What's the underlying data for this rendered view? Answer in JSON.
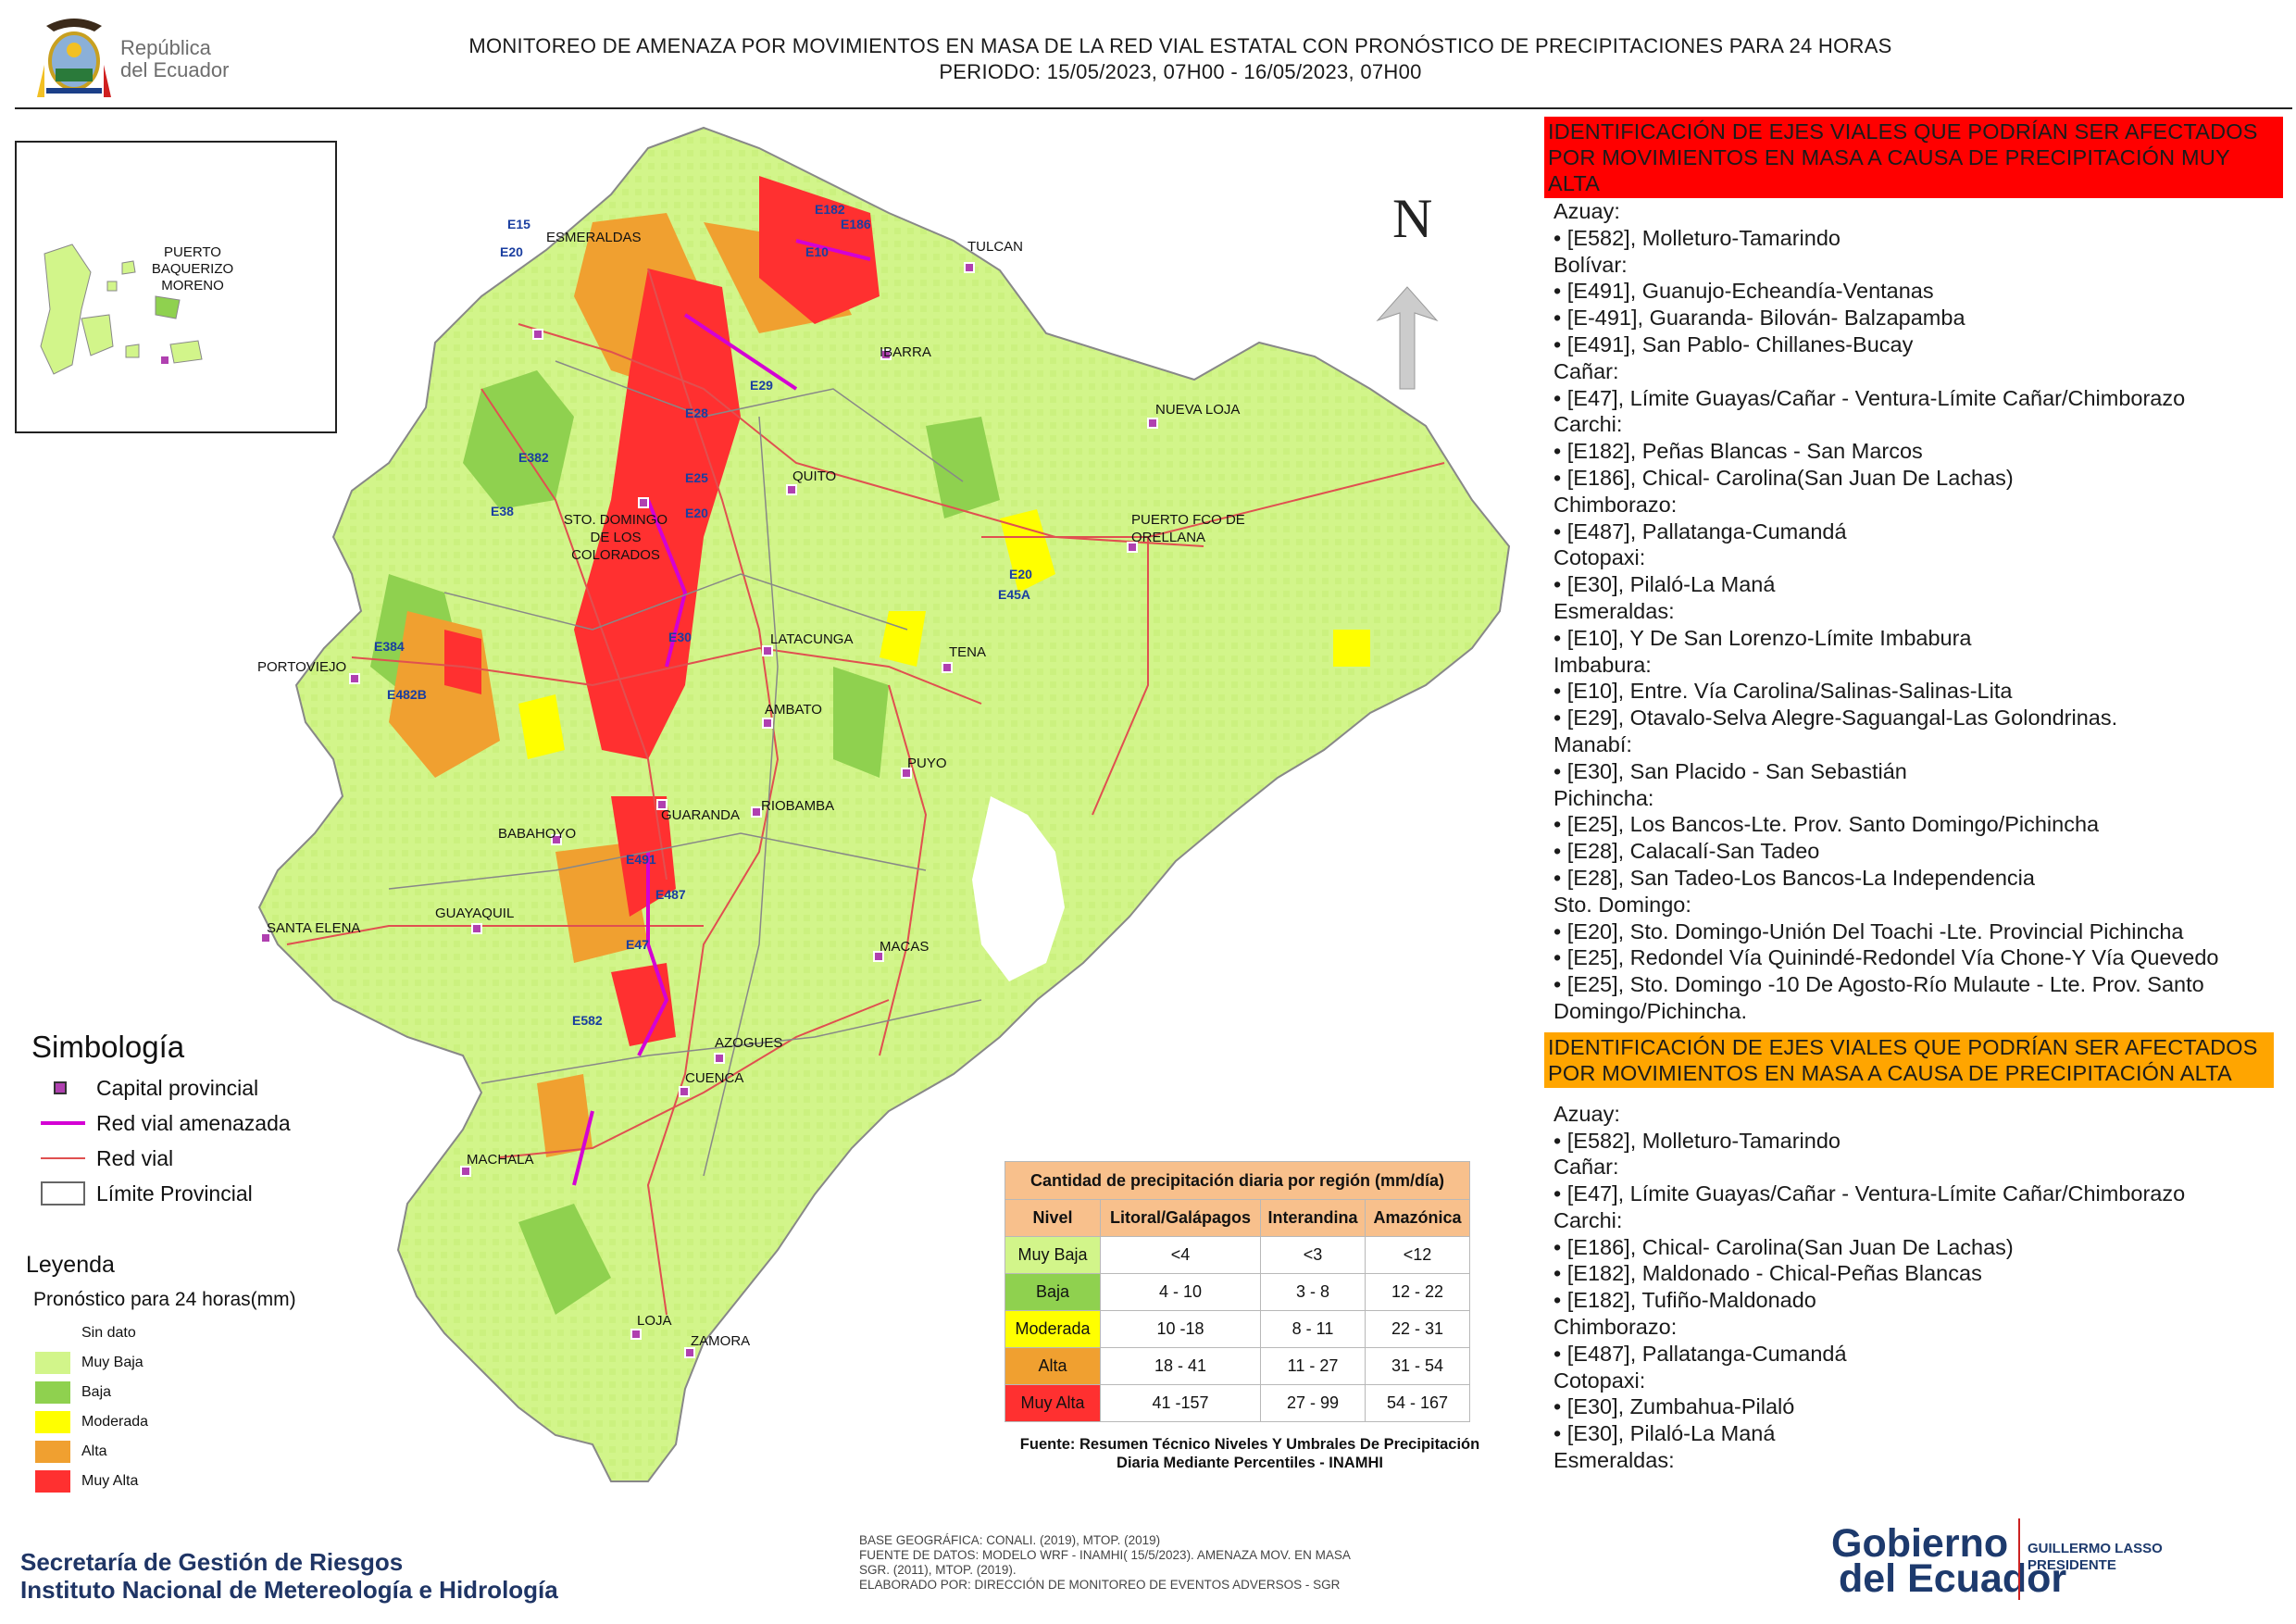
{
  "header": {
    "country_line1": "República",
    "country_line2": "del Ecuador",
    "title_line1": "MONITOREO DE AMENAZA POR MOVIMIENTOS EN MASA DE LA RED VIAL  ESTATAL  CON PRONÓSTICO  DE  PRECIPITACIONES PARA 24 HORAS",
    "title_line2": "PERIODO: 15/05/2023, 07H00 - 16/05/2023, 07H00"
  },
  "map": {
    "north_label": "N",
    "inset_city": "PUERTO\nBAQUERIZO\nMORENO",
    "cities": [
      {
        "name": "ESMERALDAS"
      },
      {
        "name": "TULCAN"
      },
      {
        "name": "IBARRA"
      },
      {
        "name": "NUEVA LOJA"
      },
      {
        "name": "QUITO"
      },
      {
        "name": "STO. DOMINGO DE LOS COLORADOS"
      },
      {
        "name": "PUERTO FCO DE ORELLANA"
      },
      {
        "name": "PORTOVIEJO"
      },
      {
        "name": "LATACUNGA"
      },
      {
        "name": "TENA"
      },
      {
        "name": "AMBATO"
      },
      {
        "name": "PUYO"
      },
      {
        "name": "GUARANDA"
      },
      {
        "name": "RIOBAMBA"
      },
      {
        "name": "BABAHOYO"
      },
      {
        "name": "SANTA ELENA"
      },
      {
        "name": "GUAYAQUIL"
      },
      {
        "name": "MACAS"
      },
      {
        "name": "AZOGUES"
      },
      {
        "name": "CUENCA"
      },
      {
        "name": "MACHALA"
      },
      {
        "name": "LOJA"
      },
      {
        "name": "ZAMORA"
      }
    ],
    "road_labels": [
      "E15",
      "E20",
      "E182",
      "E186",
      "E10",
      "E29",
      "E28",
      "E382",
      "E25",
      "E20",
      "E38",
      "E20",
      "E45A",
      "E30",
      "E384",
      "E482B",
      "E491",
      "E487",
      "E47",
      "E582"
    ]
  },
  "colors": {
    "sin_dato": "#ffffff",
    "muy_baja": "#d2f58a",
    "baja": "#8fd14f",
    "moderada": "#ffff00",
    "alta": "#f0a030",
    "muy_alta": "#ff3030",
    "red_vial_amenazada": "#d400d4",
    "red_vial": "#e05050",
    "banner_red": "#ff0000",
    "banner_orange": "#ffa500",
    "table_header": "#f8c08c"
  },
  "simbologia": {
    "title": "Simbología",
    "items": [
      {
        "label": "Capital provincial",
        "icon": "capital-marker-icon"
      },
      {
        "label": "Red vial amenazada",
        "icon": "threatened-road-line-icon"
      },
      {
        "label": "Red vial",
        "icon": "road-line-icon"
      },
      {
        "label": "Límite Provincial",
        "icon": "province-boundary-icon"
      }
    ]
  },
  "leyenda": {
    "title": "Leyenda",
    "subtitle": "Pronóstico para 24 horas(mm)",
    "items": [
      {
        "label": "Sin dato"
      },
      {
        "label": "Muy Baja"
      },
      {
        "label": "Baja"
      },
      {
        "label": "Moderada"
      },
      {
        "label": "Alta"
      },
      {
        "label": "Muy Alta"
      }
    ]
  },
  "precip_table": {
    "caption": "Cantidad de precipitación diaria por región (mm/día)",
    "headers": [
      "Nivel",
      "Litoral/Galápagos",
      "Interandina",
      "Amazónica"
    ],
    "rows": [
      [
        "Muy Baja",
        "<4",
        "<3",
        "<12"
      ],
      [
        "Baja",
        "4 - 10",
        "3 - 8",
        "12 - 22"
      ],
      [
        "Moderada",
        "10 -18",
        "8 - 11",
        "22 - 31"
      ],
      [
        "Alta",
        "18 - 41",
        "11 - 27",
        "31 - 54"
      ],
      [
        "Muy Alta",
        "41 -157",
        "27 - 99",
        "54 - 167"
      ]
    ],
    "source": "Fuente: Resumen Técnico Niveles Y Umbrales De Precipitación Diaria Mediante Percentiles - INAMHI"
  },
  "panel": {
    "very_high_banner": "IDENTIFICACIÓN DE EJES VIALES QUE PODRÍAN SER AFECTADOS POR MOVIMIENTOS EN MASA A CAUSA DE PRECIPITACIÓN MUY ALTA",
    "very_high_list": [
      "Azuay:",
      "• [E582], Molleturo-Tamarindo",
      "Bolívar:",
      "• [E491], Guanujo-Echeandía-Ventanas",
      "• [E-491], Guaranda- Bilován- Balzapamba",
      "• [E491], San Pablo- Chillanes-Bucay",
      "Cañar:",
      "• [E47], Límite Guayas/Cañar - Ventura-Límite Cañar/Chimborazo",
      "Carchi:",
      "• [E182], Peñas Blancas - San Marcos",
      "• [E186], Chical- Carolina(San Juan De Lachas)",
      "Chimborazo:",
      "• [E487], Pallatanga-Cumandá",
      "Cotopaxi:",
      "• [E30], Pilaló-La Maná",
      "Esmeraldas:",
      "• [E10], Y De San Lorenzo-Límite Imbabura",
      "Imbabura:",
      "• [E10], Entre. Vía Carolina/Salinas-Salinas-Lita",
      "• [E29], Otavalo-Selva Alegre-Saguangal-Las Golondrinas.",
      "Manabí:",
      "• [E30], San Placido - San Sebastián",
      "Pichincha:",
      "• [E25], Los Bancos-Lte. Prov. Santo Domingo/Pichincha",
      "• [E28], Calacalí-San Tadeo",
      "• [E28], San Tadeo-Los Bancos-La Independencia",
      "Sto. Domingo:",
      "• [E20], Sto. Domingo-Unión Del Toachi -Lte. Provincial Pichincha",
      "• [E25], Redondel Vía Quinindé-Redondel Vía Chone-Y Vía Quevedo",
      "• [E25], Sto. Domingo -10 De Agosto-Río Mulaute - Lte. Prov. Santo Domingo/Pichincha."
    ],
    "high_banner": "IDENTIFICACIÓN DE EJES VIALES QUE PODRÍAN SER AFECTADOS POR MOVIMIENTOS EN MASA A CAUSA DE PRECIPITACIÓN  ALTA",
    "high_list": [
      "Azuay:",
      "• [E582], Molleturo-Tamarindo",
      "Cañar:",
      "• [E47], Límite Guayas/Cañar - Ventura-Límite Cañar/Chimborazo",
      "Carchi:",
      "• [E186], Chical- Carolina(San Juan De Lachas)",
      "• [E182], Maldonado - Chical-Peñas Blancas",
      "• [E182], Tufiño-Maldonado",
      "Chimborazo:",
      "• [E487], Pallatanga-Cumandá",
      "Cotopaxi:",
      "• [E30], Zumbahua-Pilaló",
      "• [E30], Pilaló-La Maná",
      "Esmeraldas:"
    ]
  },
  "footer": {
    "org1": "Secretaría de Gestión de Riesgos",
    "org2": "Instituto Nacional de Metereología e Hidrología",
    "credits": [
      "BASE GEOGRÁFICA: CONALI. (2019), MTOP. (2019)",
      "FUENTE DE DATOS: MODELO WRF - INAMHI( 15/5/2023).  AMENAZA MOV. EN MASA",
      "SGR. (2011), MTOP. (2019).",
      "ELABORADO POR: DIRECCIÓN DE MONITOREO DE EVENTOS ADVERSOS - SGR"
    ],
    "gov_line1": "Gobierno",
    "gov_line2": "del Ecuador",
    "president_line1": "GUILLERMO LASSO",
    "president_line2": "PRESIDENTE"
  }
}
